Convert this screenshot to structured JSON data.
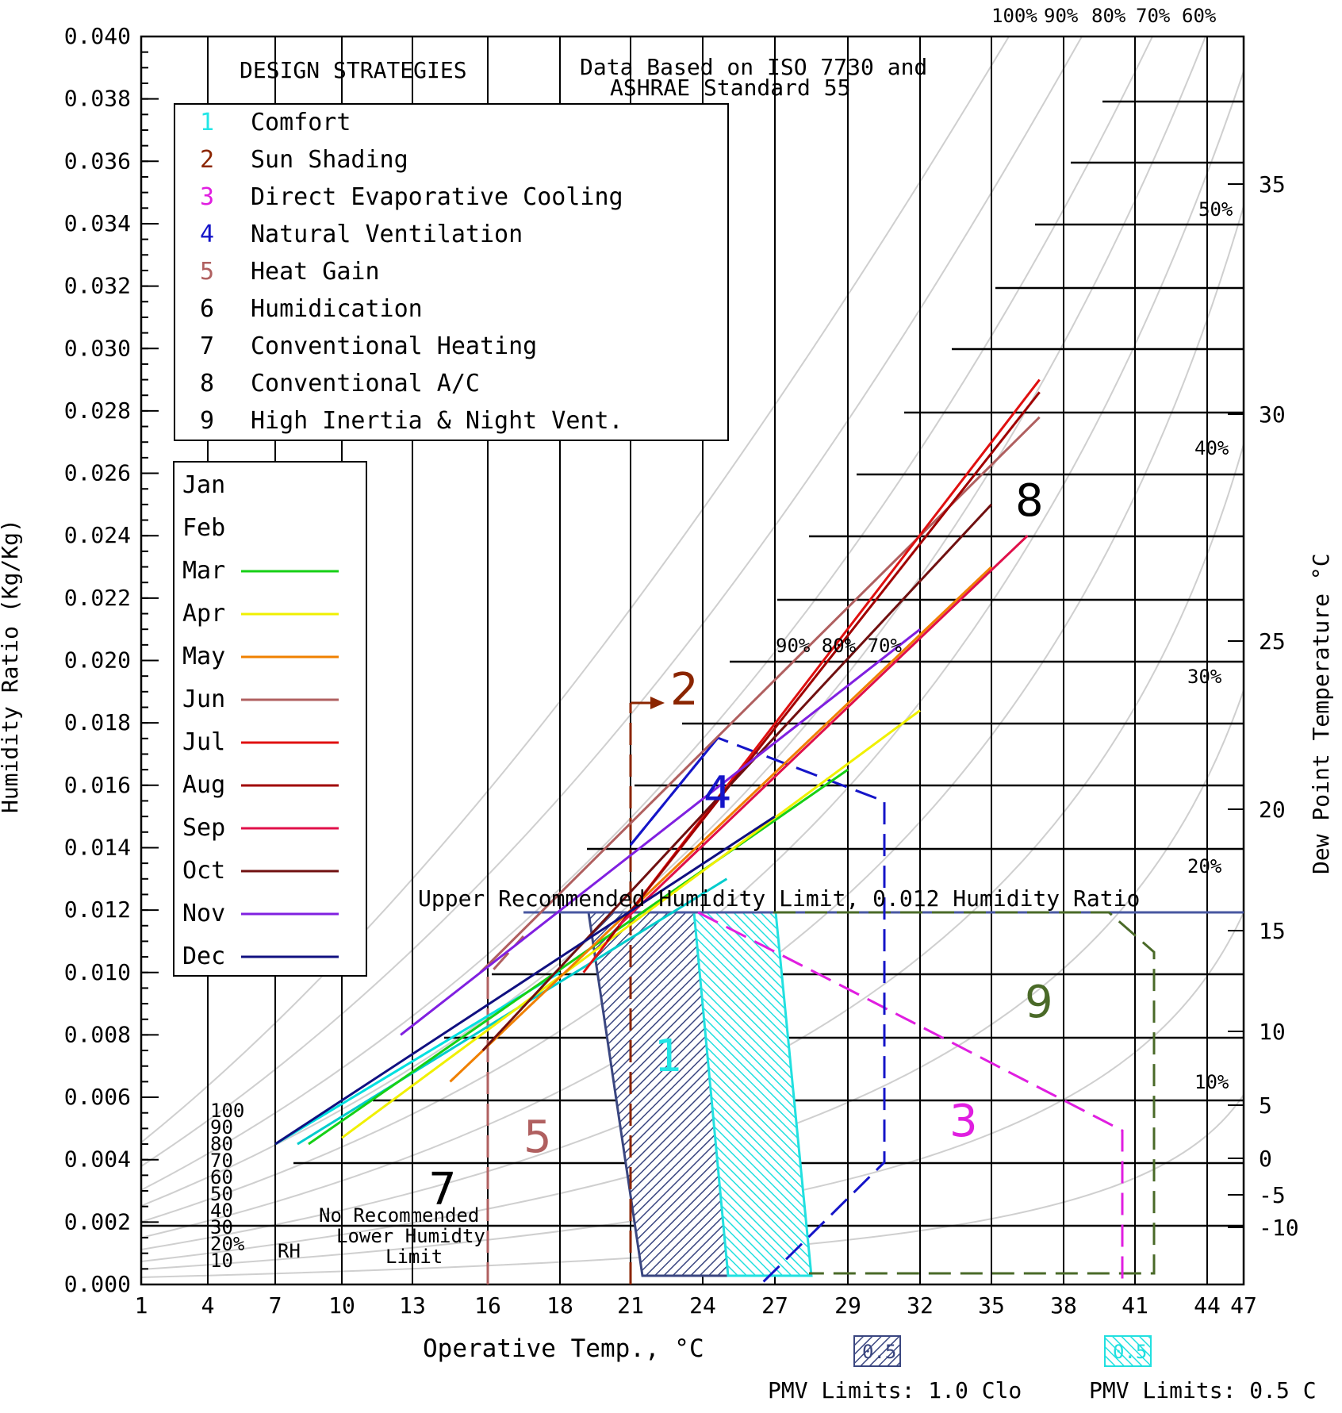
{
  "chart_data": {
    "type": "line",
    "title": "DESIGN STRATEGIES",
    "subtitle_lines": [
      "Data Based on ISO 7730 and",
      "ASHRAE Standard 55"
    ],
    "xlabel": "Operative Temp., °C",
    "ylabel": "Humidity Ratio (Kg/Kg)",
    "y2label": "Dew Point Temperature °C",
    "xlim": [
      1,
      47
    ],
    "ylim": [
      0,
      0.04
    ],
    "x_ticks": [
      "1",
      "4",
      "7",
      "10",
      "13",
      "16",
      "18",
      "21",
      "24",
      "27",
      "29",
      "32",
      "35",
      "38",
      "41",
      "44",
      "47"
    ],
    "y_ticks": [
      "0.000",
      "0.002",
      "0.004",
      "0.006",
      "0.008",
      "0.010",
      "0.012",
      "0.014",
      "0.016",
      "0.018",
      "0.020",
      "0.022",
      "0.024",
      "0.026",
      "0.028",
      "0.030",
      "0.032",
      "0.034",
      "0.036",
      "0.038",
      "0.040"
    ],
    "y2_ticks": [
      "35",
      "30",
      "25",
      "20",
      "15",
      "10",
      "5",
      "0",
      "-5",
      "-10"
    ],
    "rh_top_labels": [
      "100%",
      "90%",
      "80%",
      "70%",
      "60%"
    ],
    "rh_side_labels": [
      "50%",
      "40%",
      "30%",
      "20%",
      "10%"
    ],
    "rh_mid_labels": "90% 80% 70%",
    "rh_left_stack": [
      "100",
      "90",
      "80",
      "70",
      "60",
      "50",
      "40",
      "30",
      "20%",
      "10"
    ],
    "rh_label": "RH",
    "strategies": [
      {
        "num": "1",
        "name": "Comfort",
        "color": "#22e6e6"
      },
      {
        "num": "2",
        "name": "Sun Shading",
        "color": "#8b2500"
      },
      {
        "num": "3",
        "name": "Direct Evaporative Cooling",
        "color": "#e01ee0"
      },
      {
        "num": "4",
        "name": "Natural Ventilation",
        "color": "#1515c8"
      },
      {
        "num": "5",
        "name": "Heat Gain",
        "color": "#b06060"
      },
      {
        "num": "6",
        "name": "Humidication",
        "color": "#000000"
      },
      {
        "num": "7",
        "name": "Conventional Heating",
        "color": "#000000"
      },
      {
        "num": "8",
        "name": "Conventional A/C",
        "color": "#000000"
      },
      {
        "num": "9",
        "name": "High Inertia & Night Vent.",
        "color": "#000000"
      }
    ],
    "series": [
      {
        "name": "Jan",
        "color": "#00e0e0",
        "x": [
          7,
          18
        ],
        "y": [
          0.0045,
          0.01
        ]
      },
      {
        "name": "Feb",
        "color": "#00cccc",
        "x": [
          8,
          25
        ],
        "y": [
          0.0045,
          0.013
        ]
      },
      {
        "name": "Mar",
        "color": "#16d016",
        "x": [
          8.5,
          29
        ],
        "y": [
          0.0045,
          0.0165
        ]
      },
      {
        "name": "Apr",
        "color": "#f0f000",
        "x": [
          10,
          32
        ],
        "y": [
          0.0047,
          0.0184
        ]
      },
      {
        "name": "May",
        "color": "#f08000",
        "x": [
          14.5,
          35
        ],
        "y": [
          0.0065,
          0.023
        ]
      },
      {
        "name": "Jun",
        "color": "#b06060",
        "x": [
          15.7,
          37
        ],
        "y": [
          0.01,
          0.0278
        ]
      },
      {
        "name": "Jul",
        "color": "#e01010",
        "x": [
          19,
          37
        ],
        "y": [
          0.01,
          0.029
        ]
      },
      {
        "name": "Aug",
        "color": "#a00000",
        "x": [
          20,
          37
        ],
        "y": [
          0.011,
          0.0286
        ]
      },
      {
        "name": "Sep",
        "color": "#e0104a",
        "x": [
          20.5,
          36.5
        ],
        "y": [
          0.0115,
          0.024
        ]
      },
      {
        "name": "Oct",
        "color": "#701010",
        "x": [
          15.8,
          35
        ],
        "y": [
          0.0075,
          0.025
        ]
      },
      {
        "name": "Nov",
        "color": "#8020e0",
        "x": [
          12.5,
          32
        ],
        "y": [
          0.008,
          0.021
        ]
      },
      {
        "name": "Dec",
        "color": "#101080",
        "x": [
          7,
          27
        ],
        "y": [
          0.0045,
          0.015
        ]
      }
    ],
    "legend_months": [
      "Jan",
      "Feb",
      "Mar",
      "Apr",
      "May",
      "Jun",
      "Jul",
      "Aug",
      "Sep",
      "Oct",
      "Nov",
      "Dec"
    ],
    "annotations": {
      "upper_limit": "Upper Recommended Humidity Limit, 0.012 Humidity Ratio",
      "lower_limit": [
        "No Recommended",
        "Lower Humidty",
        "Limit"
      ],
      "pmv_label_1": "PMV Limits: 1.0 Clo",
      "pmv_label_2": "PMV Limits: 0.5 C",
      "pmv_box_1": "0.5",
      "pmv_box_2": "0.5"
    },
    "zones": [
      "1",
      "2",
      "3",
      "4",
      "5",
      "7",
      "8",
      "9"
    ],
    "grid": true
  }
}
